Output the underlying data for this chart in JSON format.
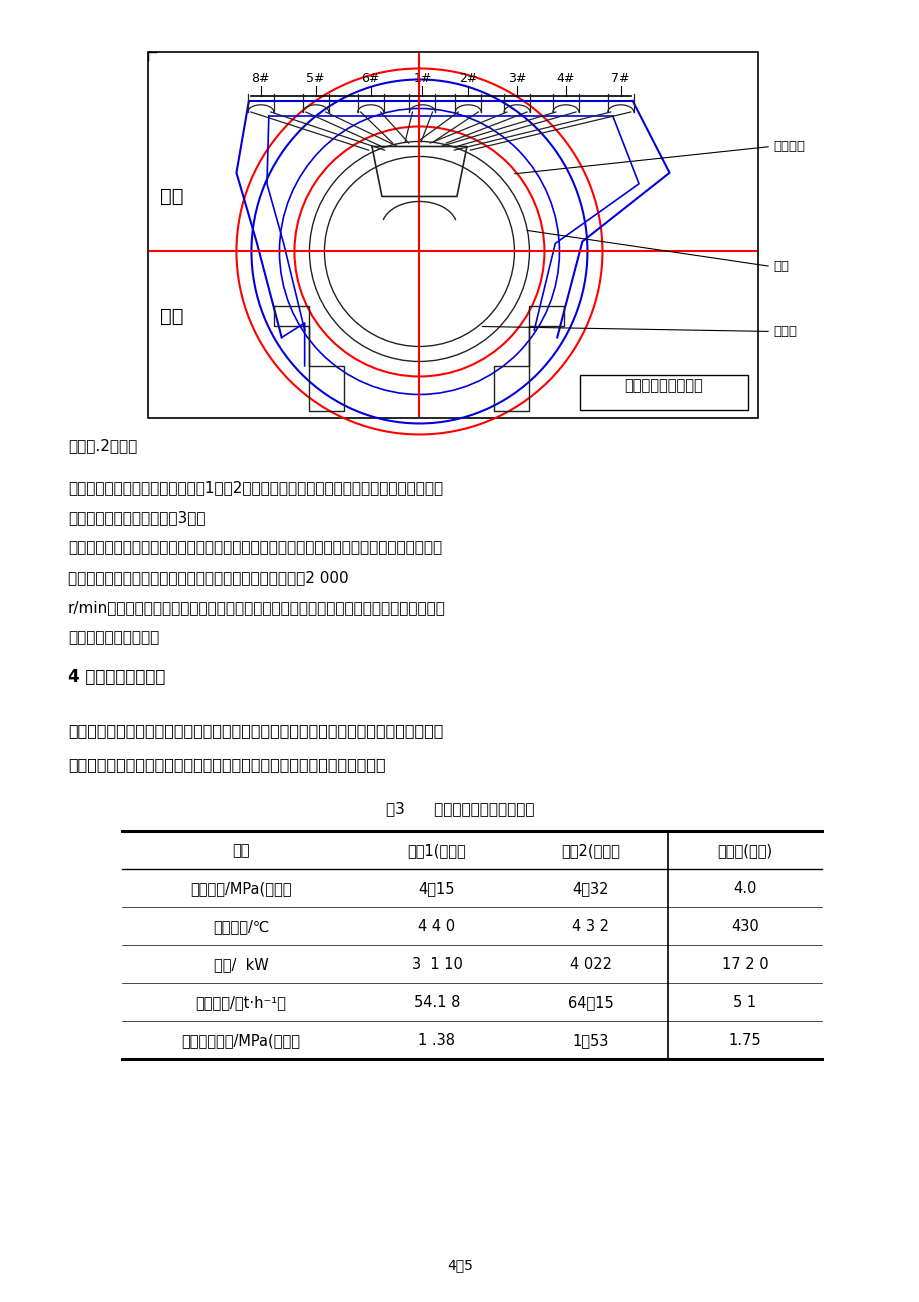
{
  "page_bg": "#ffffff",
  "diagram_title": "高压缸喷嘴组前视图",
  "nozzle_labels": [
    "8#",
    "5#",
    "6#",
    "1#",
    "2#",
    "3#",
    "4#",
    "7#"
  ],
  "label_shang": "上缸",
  "label_xia": "下缸",
  "ann_1": "调速门头",
  "ann_2": "汽道",
  "ann_3": "喷嘴组",
  "sec1": "３．３.2压力级",
  "p1a": "对于压力级，在改造过程中把对第1和第2压力级隔板喷嘴上原来封堵较多的专用喷嘴堵块进",
  "p1b": "行拆除，拆除末级隔板（第3级）",
  "p2a": "，取出末级（第３级）叶轮的叶片并保留叶根（从恢复和保护叶根槽部考虑），增加同质量配",
  "p2b": "重环以防止汽轮机重心偏移，经过计算，临界转速应控制在2 000",
  "p3": "r/min以内。为了降低排汽压力，对排汽背压管廊管道进行改造，最大程度上减少压损，提",
  "p4": "高整机蒸汽有效焓降。",
  "sec2": "4 改造后运行效果：",
  "bp1": "这次改造由保定市伊宁电力机械设备有限责任公司承担，改造后该机组一次并网成功，基",
  "bp2": "本解决存在的问题，经过１年多的运行，实际效果良好，达到原设计目的。",
  "table_caption": "表3      改造前后的典型运行工况",
  "col_headers": [
    "项目",
    "工况1(改后）",
    "工况2(改后）",
    "工况３(改前)"
  ],
  "rows": [
    [
      "主汽压力/MPa(表压）",
      "4。15",
      "4。32",
      "4.0"
    ],
    [
      "主汽温度/℃",
      "4 4 0",
      "4 3 2",
      "430"
    ],
    [
      "负荷/  kW",
      "3  1 10",
      "4 022",
      "17 2 0"
    ],
    [
      "主汽流量/（t·h⁻¹）",
      "54.1 8",
      "64．15",
      "5 1"
    ],
    [
      "调节级后压力/MPa(表压）",
      "1 .38",
      "1．53",
      "1.75"
    ]
  ],
  "page_num": "4／5"
}
